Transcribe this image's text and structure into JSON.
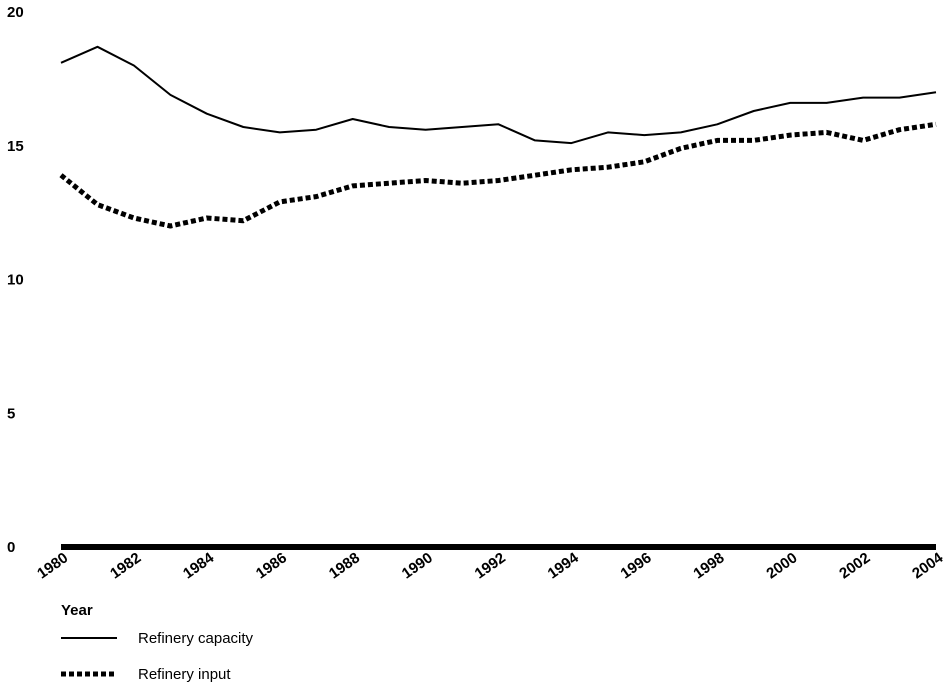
{
  "chart_data": {
    "type": "line",
    "title": "",
    "xlabel": "Year",
    "ylabel": "",
    "x": [
      1980,
      1981,
      1982,
      1983,
      1984,
      1985,
      1986,
      1987,
      1988,
      1989,
      1990,
      1991,
      1992,
      1993,
      1994,
      1995,
      1996,
      1997,
      1998,
      1999,
      2000,
      2001,
      2002,
      2003,
      2004
    ],
    "xticks": [
      "1980",
      "1982",
      "1984",
      "1986",
      "1988",
      "1990",
      "1992",
      "1994",
      "1996",
      "1998",
      "2000",
      "2002",
      "2004"
    ],
    "yticks": [
      "0",
      "5",
      "10",
      "15",
      "20"
    ],
    "xlim": [
      1980,
      2004
    ],
    "ylim": [
      0,
      20
    ],
    "grid": false,
    "legend_position": "bottom-left",
    "series": [
      {
        "name": "Refinery capacity",
        "style": "solid",
        "color": "#000000",
        "values": [
          18.1,
          18.7,
          18.0,
          16.9,
          16.2,
          15.7,
          15.5,
          15.6,
          16.0,
          15.7,
          15.6,
          15.7,
          15.8,
          15.2,
          15.1,
          15.5,
          15.4,
          15.5,
          15.8,
          16.3,
          16.6,
          16.6,
          16.8,
          16.8,
          17.0
        ]
      },
      {
        "name": "Refinery input",
        "style": "dotted",
        "color": "#000000",
        "values": [
          13.9,
          12.8,
          12.3,
          12.0,
          12.3,
          12.2,
          12.9,
          13.1,
          13.5,
          13.6,
          13.7,
          13.6,
          13.7,
          13.9,
          14.1,
          14.2,
          14.4,
          14.9,
          15.2,
          15.2,
          15.4,
          15.5,
          15.2,
          15.6,
          15.8
        ]
      }
    ]
  }
}
